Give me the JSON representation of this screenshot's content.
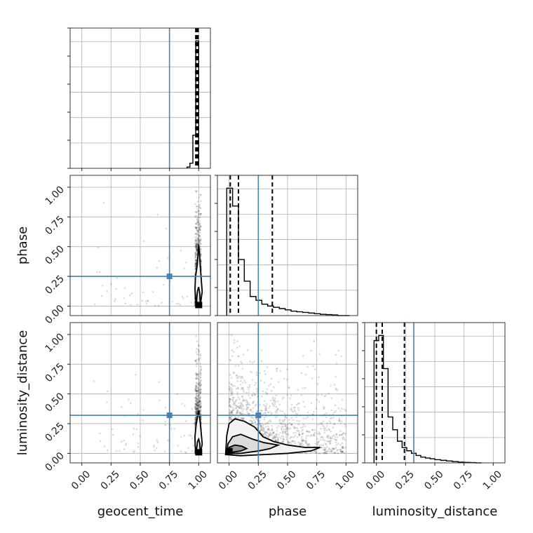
{
  "chart_data": {
    "type": "corner",
    "parameters": [
      "geocent_time",
      "phase",
      "luminosity_distance"
    ],
    "axis_labels": {
      "x": [
        "geocent_time",
        "phase",
        "luminosity_distance"
      ],
      "y": [
        "phase",
        "luminosity_distance"
      ]
    },
    "tick_values": [
      0.0,
      0.25,
      0.5,
      0.75,
      1.0
    ],
    "tick_labels": [
      "0.00",
      "0.25",
      "0.50",
      "0.75",
      "1.00"
    ],
    "xlim": [
      -0.1,
      1.1
    ],
    "grid": true,
    "truths": {
      "geocent_time": 0.75,
      "phase": 0.25,
      "luminosity_distance": 0.32
    },
    "quantiles_1d": {
      "geocent_time": [
        0.975,
        0.985,
        0.995
      ],
      "phase": [
        0.01,
        0.08,
        0.37
      ],
      "luminosity_distance": [
        0.0,
        0.05,
        0.24
      ]
    },
    "histograms_1d": {
      "geocent_time": {
        "bin_edges": [
          0.9,
          0.925,
          0.95,
          0.975,
          1.0
        ],
        "counts": [
          0.01,
          0.04,
          0.26,
          1.0
        ]
      },
      "phase": {
        "bin_edges": [
          -0.02,
          0.03,
          0.08,
          0.13,
          0.18,
          0.23,
          0.28,
          0.33,
          0.38,
          0.43,
          0.48,
          0.53,
          0.58,
          0.63,
          0.68,
          0.73,
          0.78,
          0.83,
          0.88,
          0.93,
          0.98,
          1.03
        ],
        "counts": [
          1.0,
          0.86,
          0.44,
          0.27,
          0.15,
          0.12,
          0.09,
          0.075,
          0.065,
          0.055,
          0.045,
          0.035,
          0.03,
          0.025,
          0.02,
          0.015,
          0.01,
          0.008,
          0.005,
          0.0,
          0.0
        ]
      },
      "luminosity_distance": {
        "bin_edges": [
          -0.02,
          0.02,
          0.06,
          0.1,
          0.14,
          0.18,
          0.22,
          0.26,
          0.3,
          0.34,
          0.38,
          0.42,
          0.46,
          0.5,
          0.55,
          0.6,
          0.65,
          0.7,
          0.75,
          0.8,
          0.85,
          0.9
        ],
        "counts": [
          0.96,
          1.0,
          0.74,
          0.36,
          0.26,
          0.17,
          0.12,
          0.095,
          0.075,
          0.058,
          0.045,
          0.038,
          0.032,
          0.025,
          0.02,
          0.015,
          0.01,
          0.006,
          0.004,
          0.002,
          0.0
        ]
      }
    },
    "joint_2d": [
      {
        "x": "geocent_time",
        "y": "phase",
        "contours": [
          [
            [
              0.985,
              -0.01
            ],
            [
              0.975,
              0.06
            ],
            [
              0.968,
              0.14
            ],
            [
              0.972,
              0.24
            ],
            [
              0.988,
              0.35
            ],
            [
              1.0,
              0.52
            ],
            [
              1.012,
              0.35
            ],
            [
              1.03,
              0.12
            ],
            [
              1.015,
              0.02
            ],
            [
              1.0,
              -0.01
            ]
          ],
          [
            [
              0.99,
              0.0
            ],
            [
              0.982,
              0.05
            ],
            [
              0.99,
              0.13
            ],
            [
              1.0,
              0.16
            ],
            [
              1.01,
              0.1
            ],
            [
              1.012,
              0.03
            ],
            [
              1.0,
              0.0
            ]
          ]
        ]
      },
      {
        "x": "geocent_time",
        "y": "luminosity_distance",
        "contours": [
          [
            [
              0.985,
              -0.01
            ],
            [
              0.97,
              0.06
            ],
            [
              0.968,
              0.14
            ],
            [
              0.978,
              0.24
            ],
            [
              1.0,
              0.36
            ],
            [
              1.015,
              0.24
            ],
            [
              1.03,
              0.08
            ],
            [
              1.015,
              0.0
            ],
            [
              1.0,
              -0.01
            ]
          ],
          [
            [
              0.99,
              0.0
            ],
            [
              0.982,
              0.04
            ],
            [
              0.99,
              0.1
            ],
            [
              1.0,
              0.12
            ],
            [
              1.01,
              0.08
            ],
            [
              1.012,
              0.02
            ],
            [
              1.0,
              0.0
            ]
          ]
        ]
      },
      {
        "x": "phase",
        "y": "luminosity_distance",
        "contours": [
          [
            [
              -0.03,
              -0.01
            ],
            [
              -0.02,
              0.15
            ],
            [
              0.0,
              0.25
            ],
            [
              0.05,
              0.29
            ],
            [
              0.13,
              0.27
            ],
            [
              0.22,
              0.22
            ],
            [
              0.29,
              0.14
            ],
            [
              0.38,
              0.1
            ],
            [
              0.5,
              0.07
            ],
            [
              0.65,
              0.05
            ],
            [
              0.78,
              0.05
            ],
            [
              0.7,
              0.02
            ],
            [
              0.5,
              0.0
            ],
            [
              0.3,
              -0.01
            ],
            [
              0.1,
              -0.02
            ]
          ],
          [
            [
              -0.02,
              0.0
            ],
            [
              -0.01,
              0.08
            ],
            [
              0.03,
              0.14
            ],
            [
              0.1,
              0.16
            ],
            [
              0.2,
              0.12
            ],
            [
              0.3,
              0.09
            ],
            [
              0.42,
              0.07
            ],
            [
              0.35,
              0.04
            ],
            [
              0.25,
              0.02
            ],
            [
              0.1,
              0.0
            ]
          ],
          [
            [
              -0.01,
              0.01
            ],
            [
              0.0,
              0.05
            ],
            [
              0.05,
              0.07
            ],
            [
              0.11,
              0.06
            ],
            [
              0.15,
              0.04
            ],
            [
              0.1,
              0.02
            ],
            [
              0.03,
              0.01
            ]
          ]
        ]
      }
    ]
  }
}
